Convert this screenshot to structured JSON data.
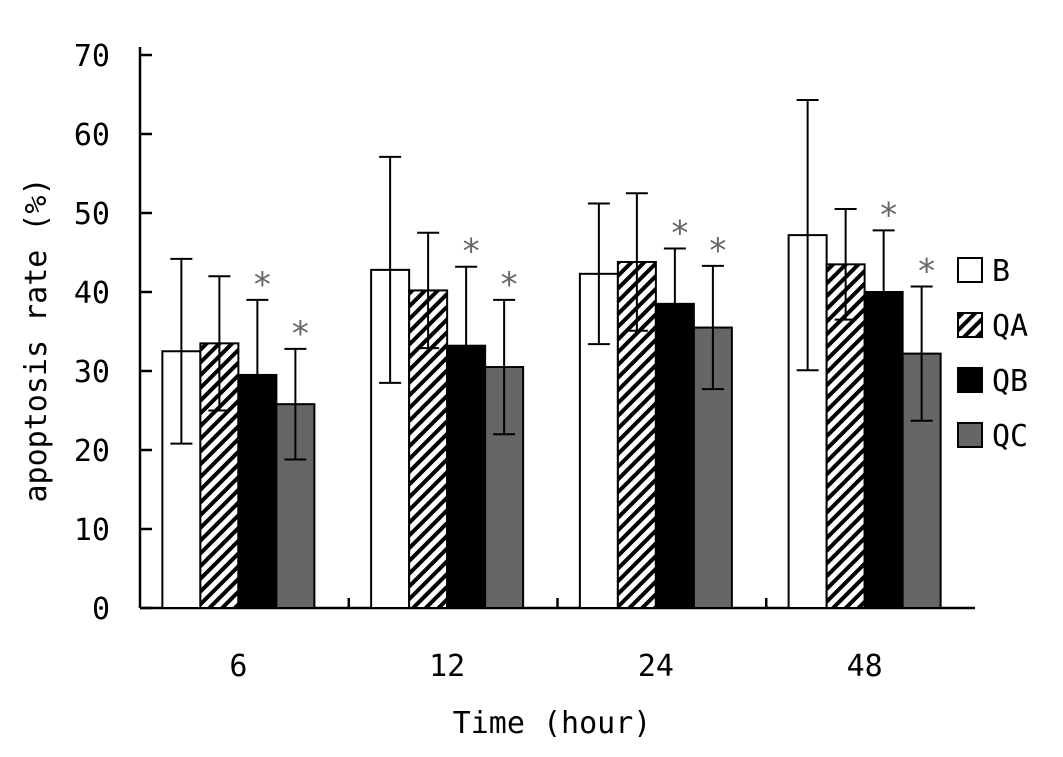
{
  "chart_data": {
    "type": "bar",
    "xlabel": "Time (hour)",
    "ylabel": "apoptosis rate (%)",
    "ylim": [
      0,
      70
    ],
    "yticks": [
      0,
      10,
      20,
      30,
      40,
      50,
      60,
      70
    ],
    "categories": [
      "6",
      "12",
      "24",
      "48"
    ],
    "grid": false,
    "legend_position": "right",
    "significance_marker": "*",
    "series": [
      {
        "name": "B",
        "fill": "#ffffff",
        "pattern": "none",
        "values": [
          32.5,
          42.8,
          42.3,
          47.2
        ],
        "error": [
          11.7,
          14.3,
          8.9,
          17.1
        ],
        "significant": [
          false,
          false,
          false,
          false
        ]
      },
      {
        "name": "QA",
        "fill": "#ffffff",
        "pattern": "hatch",
        "values": [
          33.5,
          40.2,
          43.8,
          43.5
        ],
        "error": [
          8.5,
          7.3,
          8.7,
          7.0
        ],
        "significant": [
          false,
          false,
          false,
          false
        ]
      },
      {
        "name": "QB",
        "fill": "#000000",
        "pattern": "none",
        "values": [
          29.5,
          33.2,
          38.5,
          40.0
        ],
        "error": [
          9.5,
          10.0,
          7.0,
          7.8
        ],
        "significant": [
          true,
          true,
          true,
          true
        ]
      },
      {
        "name": "QC",
        "fill": "#666666",
        "pattern": "none",
        "values": [
          25.8,
          30.5,
          35.5,
          32.2
        ],
        "error": [
          7.0,
          8.5,
          7.8,
          8.5
        ],
        "significant": [
          true,
          true,
          true,
          true
        ]
      }
    ]
  }
}
